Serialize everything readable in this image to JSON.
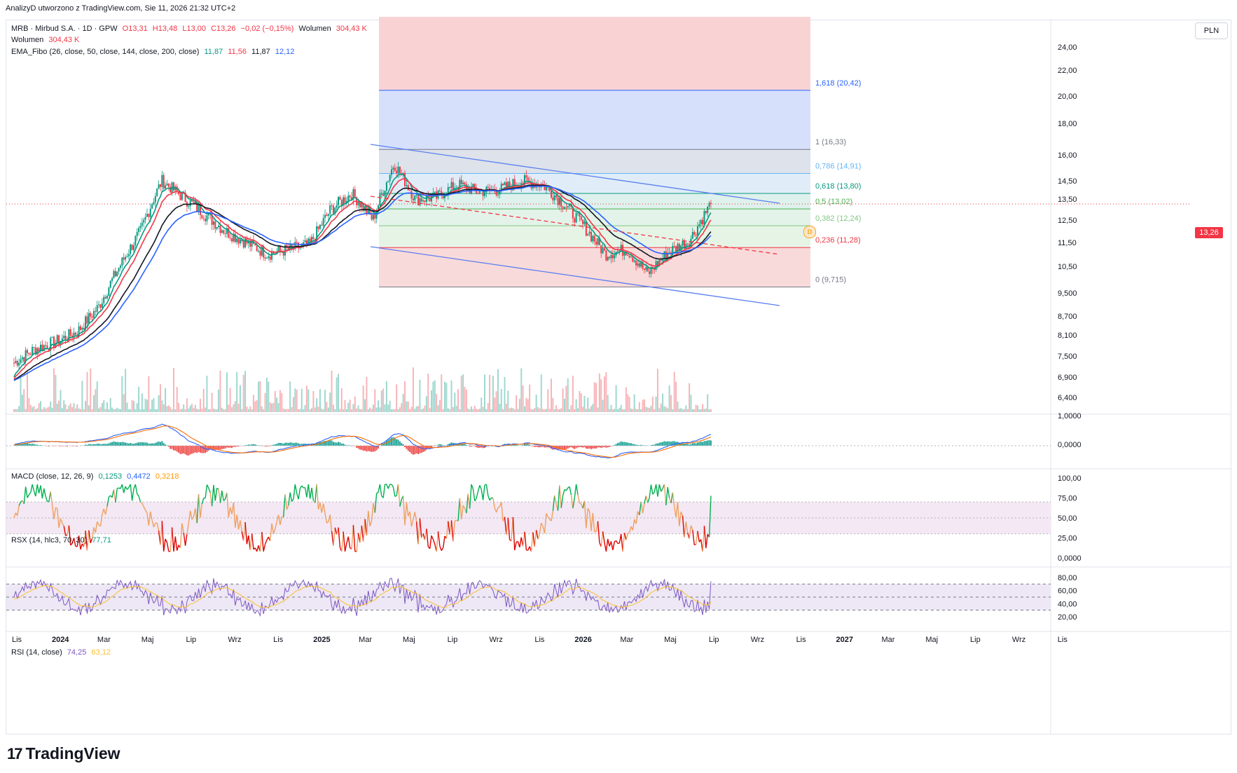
{
  "header": {
    "note": "AnalizyD utworzono z TradingView.com, Sie 11, 2026 21:32 UTC+2"
  },
  "currency_button": "PLN",
  "current_price_tag": "13,26",
  "brand": {
    "logo": "17",
    "name": "TradingView"
  },
  "legend": {
    "main": {
      "symbol": "MRB · Mirbud S.A. · 1D · GPW",
      "o": "O13,31",
      "h": "H13,48",
      "l": "L13,00",
      "c": "C13,26",
      "chg": "−0,02 (−0,15%)",
      "vol_label": "Wolumen",
      "vol_value": "304,43 K"
    },
    "volume": {
      "label": "Wolumen",
      "value": "304,43 K"
    },
    "ema": {
      "label": "EMA_Fibo (26, close, 50, close, 144, close, 200, close)",
      "v1": "11,87",
      "v2": "11,56",
      "v3": "11,87",
      "v4": "12,12"
    },
    "macd": {
      "label": "MACD (close, 12, 26, 9)",
      "v1": "0,1253",
      "v2": "0,4472",
      "v3": "0,3218"
    },
    "rsx": {
      "label": "RSX (14, hlc3, 70, 30)",
      "v1": "77,71"
    },
    "rsi": {
      "label": "RSI (14, close)",
      "v1": "74,25",
      "v2": "63,12"
    }
  },
  "colors": {
    "up": "#089981",
    "down": "#f23645",
    "ema26": "#089981",
    "ema50": "#f23645",
    "ema144": "#131722",
    "ema200": "#2962ff",
    "macd": "#2962ff",
    "signal": "#ff6d00",
    "rsi": "#7e57c2",
    "rsi_ma": "#fbc02d",
    "channel": "#5b7ff0"
  },
  "chart_data": [
    {
      "type": "candlestick",
      "title": "MRB · Mirbud S.A. · 1D · GPW",
      "price_axis_ticks": [
        "24,00",
        "22,00",
        "20,00",
        "18,00",
        "16,00",
        "14,50",
        "13,50",
        "12,50",
        "11,50",
        "10,50",
        "9,500",
        "8,700",
        "8,100",
        "7,500",
        "6,900",
        "6,400"
      ],
      "time_axis_ticks": [
        "Lis",
        "2024",
        "Mar",
        "Maj",
        "Lip",
        "Wrz",
        "Lis",
        "2025",
        "Mar",
        "Maj",
        "Lip",
        "Wrz",
        "Lis",
        "2026",
        "Mar",
        "Maj",
        "Lip",
        "Wrz",
        "Lis",
        "2027",
        "Mar",
        "Maj",
        "Lip",
        "Wrz",
        "Lis"
      ],
      "ohlc_last": {
        "open": 13.31,
        "high": 13.48,
        "low": 13.0,
        "close": 13.26,
        "change": -0.02,
        "change_pct": -0.15
      },
      "close_path": [
        [
          "2023-11",
          7.3
        ],
        [
          "2023-12",
          7.7
        ],
        [
          "2024-01",
          7.9
        ],
        [
          "2024-02",
          8.2
        ],
        [
          "2024-03",
          9.0
        ],
        [
          "2024-04",
          10.5
        ],
        [
          "2024-05",
          12.0
        ],
        [
          "2024-06",
          14.5
        ],
        [
          "2024-07",
          13.6
        ],
        [
          "2024-08",
          12.8
        ],
        [
          "2024-09",
          12.0
        ],
        [
          "2024-10",
          11.5
        ],
        [
          "2024-11",
          11.0
        ],
        [
          "2024-12",
          11.2
        ],
        [
          "2025-01",
          11.4
        ],
        [
          "2025-02",
          13.0
        ],
        [
          "2025-03",
          13.8
        ],
        [
          "2025-04",
          12.5
        ],
        [
          "2025-05",
          15.5
        ],
        [
          "2025-06",
          13.5
        ],
        [
          "2025-07",
          13.6
        ],
        [
          "2025-08",
          14.3
        ],
        [
          "2025-09",
          13.9
        ],
        [
          "2025-10",
          14.0
        ],
        [
          "2025-11",
          14.5
        ],
        [
          "2025-12",
          14.3
        ],
        [
          "2026-01",
          13.3
        ],
        [
          "2026-02",
          12.2
        ],
        [
          "2026-03",
          11.0
        ],
        [
          "2026-04",
          11.2
        ],
        [
          "2026-05",
          10.2
        ],
        [
          "2026-06",
          11.1
        ],
        [
          "2026-07",
          11.6
        ],
        [
          "2026-08",
          13.26
        ]
      ],
      "ema_last": {
        "ema26": 11.87,
        "ema50": 11.56,
        "ema144": 11.87,
        "ema200": 12.12
      },
      "fibonacci": [
        {
          "level": "1,618",
          "price": 20.42,
          "label": "1,618 (20,42)"
        },
        {
          "level": "1",
          "price": 16.33,
          "label": "1 (16,33)"
        },
        {
          "level": "0,786",
          "price": 14.91,
          "label": "0,786 (14,91)"
        },
        {
          "level": "0,618",
          "price": 13.8,
          "label": "0,618 (13,80)"
        },
        {
          "level": "0,5",
          "price": 13.02,
          "label": "0,5 (13,02)"
        },
        {
          "level": "0,382",
          "price": 12.24,
          "label": "0,382 (12,24)"
        },
        {
          "level": "0,236",
          "price": 11.28,
          "label": "0,236 (11,28)"
        },
        {
          "level": "0",
          "price": 9.715,
          "label": "0 (9,715)"
        }
      ],
      "volume_last": "304,43 K"
    },
    {
      "type": "line",
      "title": "MACD (close, 12, 26, 9)",
      "axis_ticks": [
        "1,0000",
        "0,0000"
      ],
      "values": {
        "histogram": 0.1253,
        "macd": 0.4472,
        "signal": 0.3218
      }
    },
    {
      "type": "line",
      "title": "RSX (14, hlc3, 70, 30)",
      "axis_ticks": [
        "100,00",
        "75,00",
        "50,00",
        "25,00",
        "0,0000"
      ],
      "value": 77.71,
      "upper": 70,
      "lower": 30
    },
    {
      "type": "line",
      "title": "RSI (14, close)",
      "axis_ticks": [
        "80,00",
        "60,00",
        "40,00",
        "20,00"
      ],
      "value": 74.25,
      "ma": 63.12
    }
  ]
}
